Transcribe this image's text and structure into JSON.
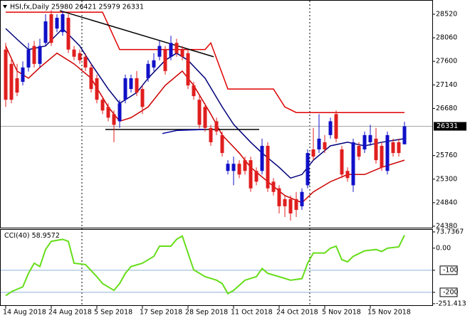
{
  "chart_data": [
    {
      "type": "candlestick",
      "title": "HSI,fx,Daily  25980 26421 25979 26331",
      "categories": [
        "14 Aug 2018",
        null,
        null,
        null,
        null,
        null,
        null,
        null,
        "24 Aug 2018",
        null,
        null,
        null,
        null,
        null,
        null,
        null,
        "5 Sep 2018",
        null,
        null,
        null,
        null,
        null,
        null,
        null,
        "17 Sep 2018",
        null,
        null,
        null,
        null,
        null,
        null,
        null,
        "28 Sep 2018",
        null,
        null,
        null,
        null,
        null,
        null,
        null,
        "11 Oct 2018",
        null,
        null,
        null,
        null,
        null,
        null,
        null,
        "24 Oct 2018",
        null,
        null,
        null,
        null,
        null,
        null,
        null,
        "5 Nov 2018",
        null,
        null,
        null,
        null,
        null,
        null,
        null,
        "15 Nov 2018",
        null,
        null,
        null,
        null,
        null,
        null
      ],
      "open": [
        27830,
        27550,
        27270,
        27200,
        27480,
        27900,
        27550,
        27960,
        28520,
        28240,
        28170,
        28450,
        27830,
        27760,
        27690,
        27480,
        27270,
        26850,
        26710,
        26570,
        26430,
        26850,
        27060,
        27270,
        27060,
        27270,
        27480,
        27690,
        27830,
        27690,
        27960,
        27830,
        27760,
        27130,
        26850,
        26710,
        26300,
        26430,
        26160,
        25460,
        25460,
        25600,
        25670,
        25670,
        25460,
        25460,
        25950,
        25250,
        25120,
        24910,
        24910,
        24910,
        24770,
        25180,
        25880,
        25880,
        26020,
        26160,
        26570,
        25880,
        25460,
        25180,
        25950,
        25880,
        26020,
        26090,
        25950,
        25460,
        26020,
        26020,
        25980
      ],
      "high": [
        27960,
        27680,
        27550,
        27600,
        27960,
        28000,
        28040,
        28520,
        28600,
        28520,
        28580,
        28520,
        27900,
        27830,
        27760,
        27550,
        27340,
        26920,
        26780,
        26640,
        26850,
        27340,
        27340,
        27410,
        27130,
        27620,
        27760,
        28000,
        27900,
        28100,
        28040,
        27900,
        27830,
        27200,
        26920,
        26780,
        26360,
        26500,
        26230,
        25670,
        25740,
        25670,
        25740,
        25740,
        25530,
        26090,
        26020,
        25320,
        25180,
        24980,
        24980,
        25050,
        25120,
        25880,
        26300,
        26570,
        26160,
        26500,
        26640,
        25950,
        25530,
        26090,
        26020,
        26230,
        26360,
        26300,
        26020,
        26230,
        26090,
        26090,
        26421
      ],
      "low": [
        26710,
        26780,
        26920,
        27130,
        27400,
        27480,
        27480,
        27900,
        27900,
        28170,
        28100,
        27760,
        27620,
        27550,
        27410,
        26990,
        26780,
        26570,
        26430,
        26020,
        26300,
        26780,
        26990,
        26920,
        26570,
        27200,
        27410,
        27620,
        27340,
        27620,
        27690,
        27620,
        27060,
        26850,
        26290,
        26230,
        25950,
        26160,
        25740,
        25390,
        25180,
        25320,
        25390,
        25050,
        25180,
        25390,
        25050,
        24980,
        24630,
        24560,
        24490,
        24560,
        24700,
        25120,
        25670,
        25810,
        25810,
        26090,
        26020,
        25320,
        25250,
        25050,
        25670,
        25810,
        25950,
        25600,
        25460,
        25390,
        25740,
        25740,
        25979
      ],
      "close": [
        26850,
        26850,
        26990,
        27480,
        27830,
        27550,
        27900,
        28380,
        27960,
        28450,
        28520,
        27830,
        27690,
        27620,
        27480,
        27060,
        26850,
        26640,
        26500,
        26360,
        26780,
        27270,
        27270,
        26990,
        26710,
        27550,
        27620,
        27900,
        27410,
        27960,
        27760,
        27690,
        27130,
        26920,
        26360,
        26300,
        26020,
        26230,
        25810,
        25600,
        25600,
        25390,
        25460,
        25120,
        25250,
        25950,
        25120,
        25050,
        24770,
        24770,
        24630,
        24700,
        25050,
        25810,
        25740,
        26090,
        25880,
        26430,
        26090,
        25390,
        25320,
        26020,
        25740,
        26160,
        26160,
        25670,
        25530,
        26160,
        25810,
        25810,
        26331
      ],
      "up_color": "#1010c8",
      "down_color": "#e01e1e",
      "ylim": [
        24352,
        28756
      ],
      "yticks": [
        28520,
        28060,
        27600,
        27140,
        26680,
        25760,
        25300,
        24840,
        24380
      ],
      "last_price": 26331,
      "overlays": [
        {
          "color": "#00007a",
          "x": [
            0,
            2,
            4,
            7,
            10,
            13,
            15,
            18,
            20,
            23,
            25,
            28,
            30,
            32,
            35,
            38,
            40,
            43,
            45,
            48,
            50,
            52,
            54,
            57,
            60,
            63,
            66,
            70
          ],
          "values": [
            28240,
            28030,
            27830,
            27900,
            28240,
            27900,
            27550,
            27060,
            26780,
            26990,
            27270,
            27620,
            27760,
            27620,
            27270,
            26710,
            26370,
            26020,
            25810,
            25530,
            25320,
            25390,
            25670,
            25950,
            26020,
            25950,
            26020,
            26090
          ]
        },
        {
          "color": "#cc0000",
          "x": [
            0,
            2,
            4,
            6,
            9,
            12,
            15,
            18,
            20,
            22,
            25,
            28,
            31,
            33,
            36,
            38,
            41,
            43,
            46,
            49,
            52,
            54,
            57,
            60,
            63,
            66,
            70
          ],
          "values": [
            27900,
            27410,
            27270,
            27480,
            27760,
            27550,
            27270,
            26710,
            26430,
            26500,
            26710,
            27130,
            27410,
            27130,
            26570,
            26160,
            25810,
            25530,
            25250,
            24980,
            24840,
            25050,
            25250,
            25390,
            25390,
            25530,
            25670
          ]
        },
        {
          "color": "#e00000",
          "x": [
            0,
            17,
            20,
            35,
            36,
            39,
            47,
            49,
            51,
            70
          ],
          "values": [
            28560,
            28560,
            27830,
            27830,
            27960,
            27060,
            27060,
            26710,
            26600,
            26600
          ]
        },
        {
          "color": "#000000",
          "x": [
            9.5,
            36.5
          ],
          "values": [
            28590,
            27690
          ]
        },
        {
          "color": "#000000",
          "x": [
            17.5,
            44.5
          ],
          "values": [
            26270,
            26270
          ]
        },
        {
          "color": "#0000a0",
          "x": [
            27.5,
            30,
            35
          ],
          "values": [
            26190,
            26250,
            26270
          ]
        }
      ]
    },
    {
      "type": "line",
      "title": "CCI(40)",
      "last_value": 58.9572,
      "color": "#66dd1a",
      "x": [
        0,
        1,
        3,
        4,
        5,
        6,
        7,
        8,
        10,
        11,
        12,
        14,
        16,
        17,
        19,
        20,
        21,
        22,
        24,
        26,
        27,
        29,
        30,
        31,
        32,
        33,
        35,
        37,
        38,
        39,
        40,
        42,
        44,
        45,
        46,
        48,
        50,
        52,
        53,
        54,
        56,
        57,
        58,
        59,
        60,
        61,
        63,
        65,
        66,
        67,
        69,
        70
      ],
      "values": [
        -215,
        -197,
        -175,
        -114,
        -68,
        -83,
        -6,
        31,
        40,
        31,
        -68,
        -74,
        -129,
        -160,
        -191,
        -160,
        -114,
        -83,
        -68,
        -37,
        9,
        9,
        40,
        55,
        -22,
        -98,
        -129,
        -145,
        -160,
        -206,
        -191,
        -145,
        -129,
        -92,
        -114,
        -129,
        -145,
        -138,
        -68,
        -22,
        -22,
        0,
        9,
        -52,
        -62,
        -37,
        -12,
        -6,
        -15,
        0,
        6,
        58.9572
      ],
      "ylim": [
        -255,
        80
      ],
      "yticks": [
        73.7367,
        {
          "value": 0,
          "label": "0.00"
        },
        -100,
        -200,
        -251.413
      ],
      "levels": [
        -100,
        -200
      ],
      "level_color": "#8fb0d8"
    }
  ]
}
